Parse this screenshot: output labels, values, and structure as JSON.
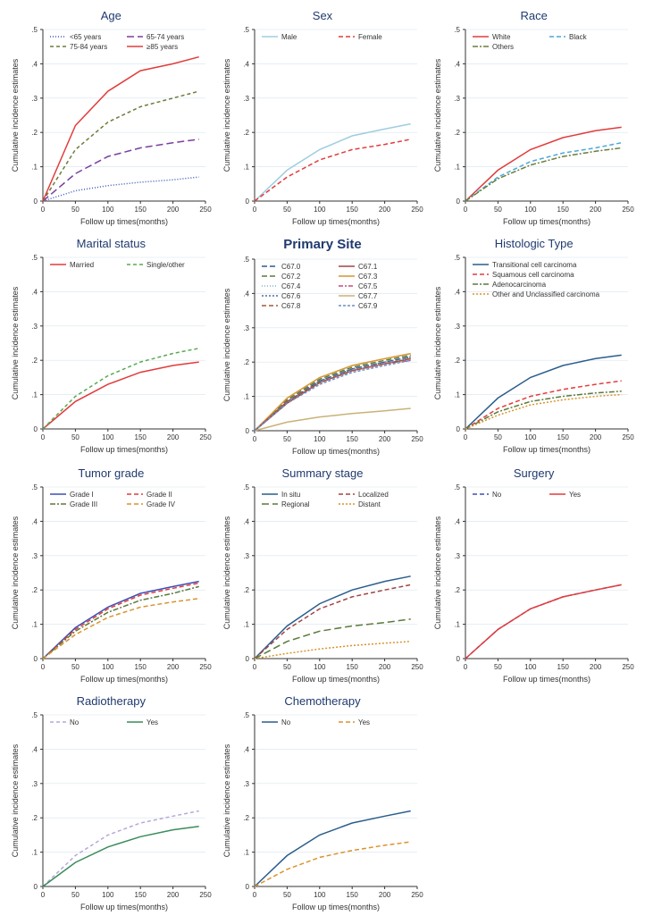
{
  "global": {
    "xlabel": "Follow up times(months)",
    "ylabel": "Cumulative incidence estimates",
    "xlim": [
      0,
      250
    ],
    "ylim": [
      0,
      0.5
    ],
    "xticks": [
      0,
      50,
      100,
      150,
      200,
      250
    ],
    "yticks": [
      0,
      0.1,
      0.2,
      0.3,
      0.4,
      0.5
    ],
    "ytick_labels": [
      "0",
      ".1",
      ".2",
      ".3",
      ".4",
      ".5"
    ],
    "background_color": "#ffffff",
    "grid_color": "#d8e4ee",
    "axis_color": "#333333",
    "title_color": "#1f3a6e",
    "label_fontsize": 9,
    "tick_fontsize": 8,
    "title_fontsize": 13,
    "legend_fontsize": 8,
    "line_width": 1.5
  },
  "panels": [
    {
      "title": "Age",
      "series": [
        {
          "label": "<65 years",
          "color": "#3b5bb5",
          "dash": "1,2",
          "x": [
            0,
            50,
            100,
            150,
            200,
            240
          ],
          "y": [
            0,
            0.03,
            0.045,
            0.055,
            0.062,
            0.07
          ]
        },
        {
          "label": "65-74 years",
          "color": "#7a3fa0",
          "dash": "8,4",
          "x": [
            0,
            50,
            100,
            150,
            200,
            240
          ],
          "y": [
            0,
            0.08,
            0.13,
            0.155,
            0.17,
            0.18
          ]
        },
        {
          "label": "75-84 years",
          "color": "#6b7d3a",
          "dash": "4,3",
          "x": [
            0,
            50,
            100,
            150,
            200,
            240
          ],
          "y": [
            0,
            0.15,
            0.23,
            0.275,
            0.3,
            0.32
          ]
        },
        {
          "label": "≥85 years",
          "color": "#e23b3b",
          "dash": "",
          "x": [
            0,
            50,
            100,
            150,
            200,
            240
          ],
          "y": [
            0,
            0.22,
            0.32,
            0.38,
            0.4,
            0.42
          ]
        }
      ],
      "legend_cols": 2
    },
    {
      "title": "Sex",
      "series": [
        {
          "label": "Male",
          "color": "#9ecde0",
          "dash": "",
          "x": [
            0,
            50,
            100,
            150,
            200,
            240
          ],
          "y": [
            0,
            0.09,
            0.15,
            0.19,
            0.21,
            0.225
          ]
        },
        {
          "label": "Female",
          "color": "#e23b3b",
          "dash": "5,3",
          "x": [
            0,
            50,
            100,
            150,
            200,
            240
          ],
          "y": [
            0,
            0.07,
            0.12,
            0.15,
            0.165,
            0.18
          ]
        }
      ],
      "legend_cols": 2
    },
    {
      "title": "Race",
      "series": [
        {
          "label": "White",
          "color": "#e23b3b",
          "dash": "",
          "x": [
            0,
            50,
            100,
            150,
            200,
            240
          ],
          "y": [
            0,
            0.09,
            0.15,
            0.185,
            0.205,
            0.215
          ]
        },
        {
          "label": "Black",
          "color": "#4aa8d8",
          "dash": "5,3",
          "x": [
            0,
            50,
            100,
            150,
            200,
            240
          ],
          "y": [
            0,
            0.07,
            0.115,
            0.14,
            0.155,
            0.17
          ]
        },
        {
          "label": "Others",
          "color": "#6b7d3a",
          "dash": "6,2,2,2",
          "x": [
            0,
            50,
            100,
            150,
            200,
            240
          ],
          "y": [
            0,
            0.065,
            0.105,
            0.13,
            0.145,
            0.155
          ]
        }
      ],
      "legend_cols": 2
    },
    {
      "title": "Marital status",
      "series": [
        {
          "label": "Married",
          "color": "#e23b3b",
          "dash": "",
          "x": [
            0,
            50,
            100,
            150,
            200,
            240
          ],
          "y": [
            0,
            0.08,
            0.13,
            0.165,
            0.185,
            0.195
          ]
        },
        {
          "label": "Single/other",
          "color": "#5aa852",
          "dash": "4,3",
          "x": [
            0,
            50,
            100,
            150,
            200,
            240
          ],
          "y": [
            0,
            0.095,
            0.155,
            0.195,
            0.22,
            0.235
          ]
        }
      ],
      "legend_cols": 2
    },
    {
      "title": "Primary Site",
      "title_bold": true,
      "series": [
        {
          "label": "C67.0",
          "color": "#2b5d8c",
          "dash": "6,3",
          "x": [
            0,
            50,
            100,
            150,
            200,
            240
          ],
          "y": [
            0,
            0.085,
            0.145,
            0.18,
            0.2,
            0.215
          ]
        },
        {
          "label": "C67.1",
          "color": "#a04545",
          "dash": "",
          "x": [
            0,
            50,
            100,
            150,
            200,
            240
          ],
          "y": [
            0,
            0.08,
            0.14,
            0.175,
            0.195,
            0.21
          ]
        },
        {
          "label": "C67.2",
          "color": "#5b7a3a",
          "dash": "6,3",
          "x": [
            0,
            50,
            100,
            150,
            200,
            240
          ],
          "y": [
            0,
            0.09,
            0.15,
            0.185,
            0.205,
            0.22
          ]
        },
        {
          "label": "C67.3",
          "color": "#d8942e",
          "dash": "",
          "x": [
            0,
            50,
            100,
            150,
            200,
            240
          ],
          "y": [
            0,
            0.095,
            0.155,
            0.19,
            0.21,
            0.225
          ]
        },
        {
          "label": "C67.4",
          "color": "#7ab5c9",
          "dash": "1,2",
          "x": [
            0,
            50,
            100,
            150,
            200,
            240
          ],
          "y": [
            0,
            0.085,
            0.14,
            0.175,
            0.195,
            0.21
          ]
        },
        {
          "label": "C67.5",
          "color": "#c94a7a",
          "dash": "5,2,2,2",
          "x": [
            0,
            50,
            100,
            150,
            200,
            240
          ],
          "y": [
            0,
            0.085,
            0.14,
            0.175,
            0.195,
            0.205
          ]
        },
        {
          "label": "C67.6",
          "color": "#4a6fa0",
          "dash": "2,2",
          "x": [
            0,
            50,
            100,
            150,
            200,
            240
          ],
          "y": [
            0,
            0.085,
            0.145,
            0.18,
            0.2,
            0.215
          ]
        },
        {
          "label": "C67.7",
          "color": "#c9b278",
          "dash": "",
          "x": [
            0,
            50,
            100,
            150,
            200,
            240
          ],
          "y": [
            0,
            0.025,
            0.04,
            0.05,
            0.058,
            0.065
          ]
        },
        {
          "label": "C67.8",
          "color": "#a05a3a",
          "dash": "5,3",
          "x": [
            0,
            50,
            100,
            150,
            200,
            240
          ],
          "y": [
            0,
            0.085,
            0.14,
            0.175,
            0.195,
            0.21
          ]
        },
        {
          "label": "C67.9",
          "color": "#6a8fc0",
          "dash": "3,2",
          "x": [
            0,
            50,
            100,
            150,
            200,
            240
          ],
          "y": [
            0,
            0.08,
            0.135,
            0.17,
            0.19,
            0.205
          ]
        }
      ],
      "legend_cols": 2
    },
    {
      "title": "Histologic Type",
      "series": [
        {
          "label": "Transitional cell carcinoma",
          "color": "#2b5d8c",
          "dash": "",
          "x": [
            0,
            50,
            100,
            150,
            200,
            240
          ],
          "y": [
            0,
            0.09,
            0.15,
            0.185,
            0.205,
            0.215
          ]
        },
        {
          "label": "Squamous cell carcinoma",
          "color": "#e23b3b",
          "dash": "5,3",
          "x": [
            0,
            50,
            100,
            150,
            200,
            240
          ],
          "y": [
            0,
            0.06,
            0.095,
            0.115,
            0.13,
            0.14
          ]
        },
        {
          "label": "Adenocarcinoma",
          "color": "#5b7a3a",
          "dash": "6,2,2,2",
          "x": [
            0,
            50,
            100,
            150,
            200,
            240
          ],
          "y": [
            0,
            0.05,
            0.08,
            0.095,
            0.105,
            0.11
          ]
        },
        {
          "label": "Other and Unclassified carcinoma",
          "color": "#d8942e",
          "dash": "2,2",
          "x": [
            0,
            50,
            100,
            150,
            200,
            240
          ],
          "y": [
            0,
            0.04,
            0.07,
            0.085,
            0.095,
            0.1
          ]
        }
      ],
      "legend_cols": 1
    },
    {
      "title": "Tumor grade",
      "series": [
        {
          "label": "Grade I",
          "color": "#3b4fb5",
          "dash": "",
          "x": [
            0,
            50,
            100,
            150,
            200,
            240
          ],
          "y": [
            0,
            0.09,
            0.15,
            0.19,
            0.21,
            0.225
          ]
        },
        {
          "label": "Grade II",
          "color": "#e23b3b",
          "dash": "5,3",
          "x": [
            0,
            50,
            100,
            150,
            200,
            240
          ],
          "y": [
            0,
            0.085,
            0.145,
            0.185,
            0.205,
            0.22
          ]
        },
        {
          "label": "Grade III",
          "color": "#5b7a3a",
          "dash": "6,2,2,2",
          "x": [
            0,
            50,
            100,
            150,
            200,
            240
          ],
          "y": [
            0,
            0.08,
            0.135,
            0.17,
            0.19,
            0.21
          ]
        },
        {
          "label": "Grade IV",
          "color": "#d8942e",
          "dash": "5,3",
          "x": [
            0,
            50,
            100,
            150,
            200,
            240
          ],
          "y": [
            0,
            0.07,
            0.12,
            0.15,
            0.165,
            0.175
          ]
        }
      ],
      "legend_cols": 2
    },
    {
      "title": "Summary stage",
      "series": [
        {
          "label": "In situ",
          "color": "#2b5d8c",
          "dash": "",
          "x": [
            0,
            50,
            100,
            150,
            200,
            240
          ],
          "y": [
            0,
            0.095,
            0.16,
            0.2,
            0.225,
            0.24
          ]
        },
        {
          "label": "Localized",
          "color": "#a04545",
          "dash": "5,3",
          "x": [
            0,
            50,
            100,
            150,
            200,
            240
          ],
          "y": [
            0,
            0.085,
            0.145,
            0.18,
            0.2,
            0.215
          ]
        },
        {
          "label": "Regional",
          "color": "#5b7a3a",
          "dash": "8,4",
          "x": [
            0,
            50,
            100,
            150,
            200,
            240
          ],
          "y": [
            0,
            0.05,
            0.08,
            0.095,
            0.105,
            0.115
          ]
        },
        {
          "label": "Distant",
          "color": "#d8942e",
          "dash": "2,2",
          "x": [
            0,
            50,
            100,
            150,
            200,
            240
          ],
          "y": [
            0,
            0.015,
            0.028,
            0.038,
            0.045,
            0.05
          ]
        }
      ],
      "legend_cols": 2
    },
    {
      "title": "Surgery",
      "series": [
        {
          "label": "No",
          "color": "#3b4fb5",
          "dash": "5,3",
          "x": [
            0,
            50,
            100,
            150,
            200,
            240
          ],
          "y": [
            0,
            0.085,
            0.145,
            0.18,
            0.2,
            0.215
          ]
        },
        {
          "label": "Yes",
          "color": "#e23b3b",
          "dash": "",
          "x": [
            0,
            50,
            100,
            150,
            200,
            240
          ],
          "y": [
            0,
            0.085,
            0.145,
            0.18,
            0.2,
            0.215
          ]
        }
      ],
      "legend_cols": 2
    },
    {
      "title": "Radiotherapy",
      "series": [
        {
          "label": "No",
          "color": "#b5a8d8",
          "dash": "4,3",
          "x": [
            0,
            50,
            100,
            150,
            200,
            240
          ],
          "y": [
            0,
            0.09,
            0.15,
            0.185,
            0.205,
            0.22
          ]
        },
        {
          "label": "Yes",
          "color": "#3a8c5a",
          "dash": "",
          "x": [
            0,
            50,
            100,
            150,
            200,
            240
          ],
          "y": [
            0,
            0.07,
            0.115,
            0.145,
            0.165,
            0.175
          ]
        }
      ],
      "legend_cols": 2
    },
    {
      "title": "Chemotherapy",
      "series": [
        {
          "label": "No",
          "color": "#2b5d8c",
          "dash": "",
          "x": [
            0,
            50,
            100,
            150,
            200,
            240
          ],
          "y": [
            0,
            0.09,
            0.15,
            0.185,
            0.205,
            0.22
          ]
        },
        {
          "label": "Yes",
          "color": "#d8942e",
          "dash": "5,3",
          "x": [
            0,
            50,
            100,
            150,
            200,
            240
          ],
          "y": [
            0,
            0.05,
            0.085,
            0.105,
            0.12,
            0.13
          ]
        }
      ],
      "legend_cols": 2
    }
  ]
}
